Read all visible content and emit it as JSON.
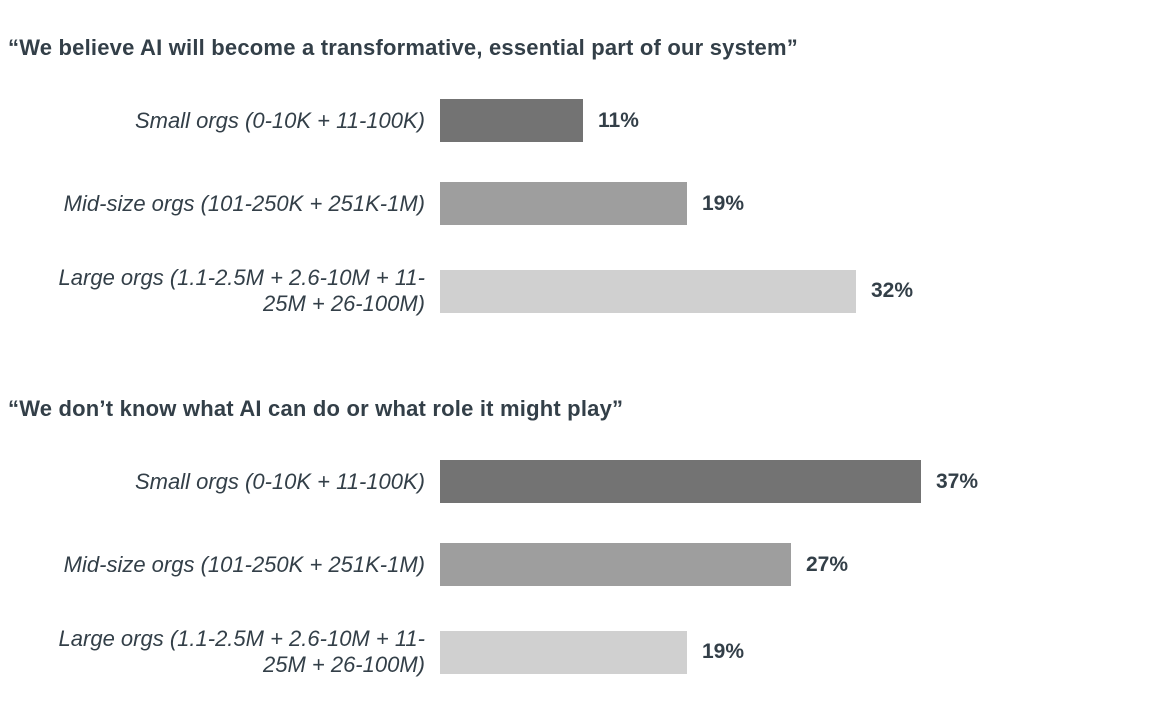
{
  "page": {
    "background": "#ffffff",
    "text_color": "#333F48"
  },
  "chart_data": [
    {
      "type": "bar",
      "orientation": "horizontal",
      "title": "“We believe AI will become a transformative, essential part of our system”",
      "categories": [
        "Small orgs (0-10K + 11-100K)",
        "Mid-size orgs (101-250K + 251K-1M)",
        "Large orgs (1.1-2.5M + 2.6-10M + 11-25M + 26-100M)"
      ],
      "values": [
        11,
        19,
        32
      ],
      "value_labels": [
        "11%",
        "19%",
        "32%"
      ],
      "bar_colors": [
        "#737373",
        "#9E9E9E",
        "#D0D0D0"
      ],
      "unit": "%",
      "xlim": [
        0,
        40
      ],
      "grid": false,
      "legend": false,
      "value_label_position": "right-of-bar"
    },
    {
      "type": "bar",
      "orientation": "horizontal",
      "title": "“We don’t know what AI can do or what role it might play”",
      "categories": [
        "Small orgs (0-10K + 11-100K)",
        "Mid-size orgs (101-250K + 251K-1M)",
        "Large orgs (1.1-2.5M + 2.6-10M + 11-25M + 26-100M)"
      ],
      "values": [
        37,
        27,
        19
      ],
      "value_labels": [
        "37%",
        "27%",
        "19%"
      ],
      "bar_colors": [
        "#737373",
        "#9E9E9E",
        "#D0D0D0"
      ],
      "unit": "%",
      "xlim": [
        0,
        40
      ],
      "grid": false,
      "legend": false,
      "value_label_position": "right-of-bar"
    }
  ]
}
